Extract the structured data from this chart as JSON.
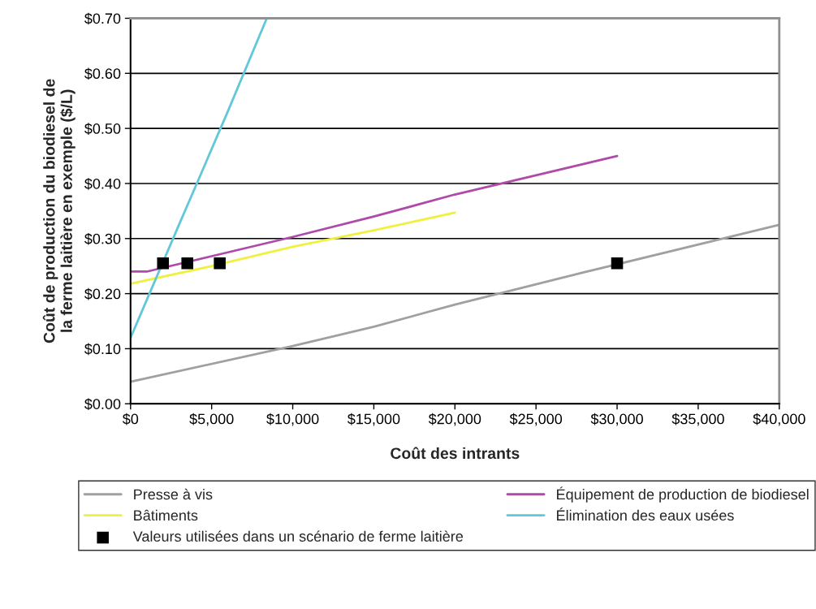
{
  "chart_data": {
    "type": "line",
    "xlabel": "Coût des intrants",
    "ylabel": "Coût de production du biodiesel de\nla ferme laitière en exemple ($/L)",
    "xlim": [
      0,
      40000
    ],
    "ylim": [
      0,
      0.7
    ],
    "xticks": [
      {
        "value": 0,
        "label": "$0"
      },
      {
        "value": 5000,
        "label": "$5,000"
      },
      {
        "value": 10000,
        "label": "$10,000"
      },
      {
        "value": 15000,
        "label": "$15,000"
      },
      {
        "value": 20000,
        "label": "$20,000"
      },
      {
        "value": 25000,
        "label": "$25,000"
      },
      {
        "value": 30000,
        "label": "$30,000"
      },
      {
        "value": 35000,
        "label": "$35,000"
      },
      {
        "value": 40000,
        "label": "$40,000"
      }
    ],
    "yticks": [
      {
        "value": 0,
        "label": "$0.00"
      },
      {
        "value": 0.1,
        "label": "$0.10"
      },
      {
        "value": 0.2,
        "label": "$0.20"
      },
      {
        "value": 0.3,
        "label": "$0.30"
      },
      {
        "value": 0.4,
        "label": "$0.40"
      },
      {
        "value": 0.5,
        "label": "$0.50"
      },
      {
        "value": 0.6,
        "label": "$0.60"
      },
      {
        "value": 0.7,
        "label": "$0.70"
      }
    ],
    "grid": "y",
    "legend": "bottom",
    "marker": "none",
    "series": [
      {
        "name": "Presse à vis",
        "color": "#a0a0a0",
        "x": [
          0,
          10000,
          15000,
          20000,
          28000,
          40000
        ],
        "values": [
          0.04,
          0.105,
          0.14,
          0.18,
          0.239,
          0.325
        ]
      },
      {
        "name": "Équipement de production de biodiesel",
        "color": "#b04aa8",
        "x": [
          0,
          1000,
          5000,
          10000,
          15000,
          20000,
          25000,
          30000
        ],
        "values": [
          0.24,
          0.24,
          0.268,
          0.303,
          0.34,
          0.38,
          0.415,
          0.45
        ]
      },
      {
        "name": "Bâtiments",
        "color": "#f0f040",
        "x": [
          0,
          5000,
          10000,
          15000,
          20000
        ],
        "values": [
          0.218,
          0.25,
          0.285,
          0.315,
          0.347
        ]
      },
      {
        "name": "Élimination des eaux usées",
        "color": "#60c8d8",
        "x": [
          0,
          3000,
          4000,
          6000,
          8400
        ],
        "values": [
          0.12,
          0.326,
          0.394,
          0.531,
          0.7
        ]
      },
      {
        "name": "Valeurs utilisées dans un scénario de ferme laitière",
        "type": "scatter",
        "marker": "square",
        "color": "#000000",
        "x": [
          2000,
          3500,
          5500,
          30000
        ],
        "values": [
          0.255,
          0.255,
          0.255,
          0.255
        ]
      }
    ]
  }
}
